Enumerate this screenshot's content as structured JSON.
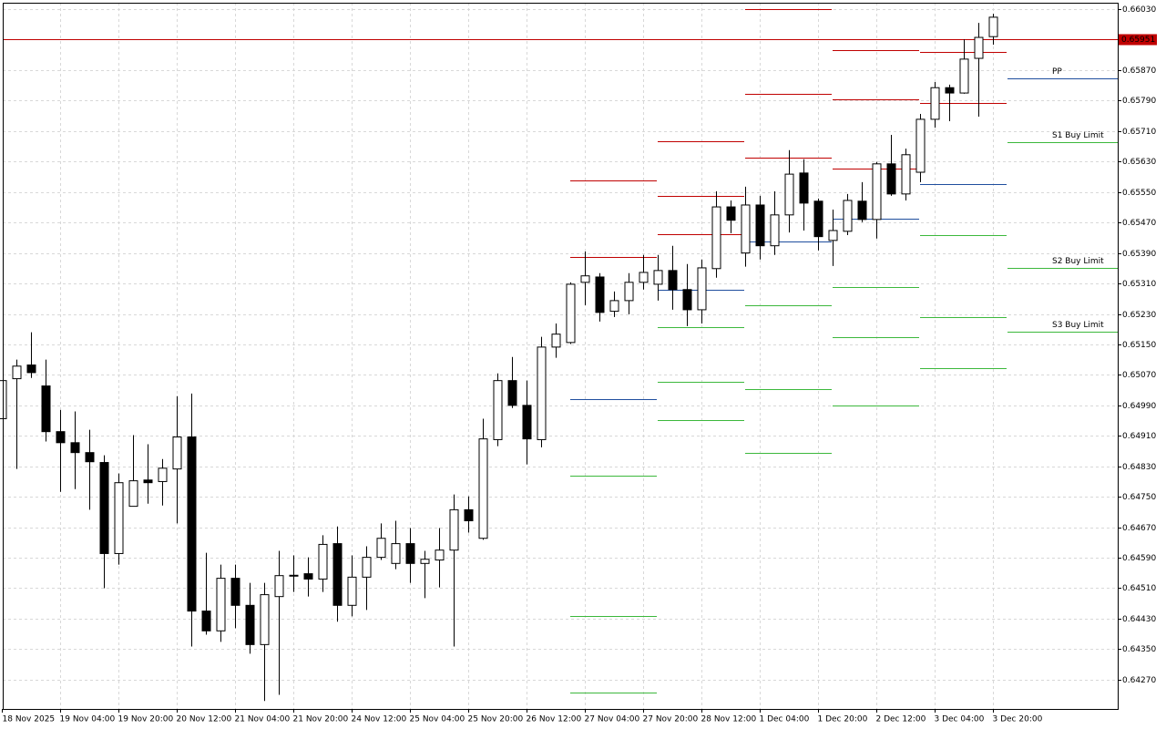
{
  "chart_data": {
    "type": "candlestick",
    "categories": [
      "18 Nov 2025",
      null,
      null,
      null,
      "19 Nov 04:00",
      null,
      null,
      null,
      "19 Nov 20:00",
      null,
      null,
      null,
      "20 Nov 12:00",
      null,
      null,
      null,
      "21 Nov 04:00",
      null,
      null,
      null,
      "21 Nov 20:00",
      null,
      null,
      null,
      "24 Nov 12:00",
      null,
      null,
      null,
      "25 Nov 04:00",
      null,
      null,
      null,
      "25 Nov 20:00",
      null,
      null,
      null,
      "26 Nov 12:00",
      null,
      null,
      null,
      "27 Nov 04:00",
      null,
      null,
      null,
      "27 Nov 20:00",
      null,
      null,
      null,
      "28 Nov 12:00",
      null,
      null,
      null,
      "1 Dec 04:00",
      null,
      null,
      null,
      "1 Dec 20:00",
      null,
      null,
      null,
      "2 Dec 12:00",
      null,
      null,
      null,
      "3 Dec 04:00",
      null,
      null,
      null,
      "3 Dec 20:00"
    ],
    "open": [
      0.64955,
      0.6506,
      0.65096,
      0.65041,
      0.64921,
      0.64892,
      0.64866,
      0.6484,
      0.64601,
      0.64725,
      0.64794,
      0.6479,
      0.64823,
      0.64907,
      0.6445,
      0.64398,
      0.64536,
      0.64465,
      0.64362,
      0.64488,
      0.64543,
      0.64548,
      0.64534,
      0.64627,
      0.64465,
      0.64539,
      0.64591,
      0.64575,
      0.64627,
      0.64575,
      0.64584,
      0.6461,
      0.64716,
      0.64641,
      0.649,
      0.65055,
      0.6499,
      0.649,
      0.65143,
      0.65155,
      0.65313,
      0.65327,
      0.65237,
      0.65265,
      0.65313,
      0.65308,
      0.65344,
      0.65294,
      0.65241,
      0.65349,
      0.65511,
      0.6539,
      0.65516,
      0.65409,
      0.6549,
      0.656,
      0.65526,
      0.65423,
      0.65447,
      0.65526,
      0.65478,
      0.65624,
      0.65545,
      0.65602,
      0.65741,
      0.65824,
      0.6581,
      0.65901,
      0.65958
    ],
    "high": [
      0.65055,
      0.6511,
      0.65182,
      0.6511,
      0.64978,
      0.64974,
      0.64926,
      0.64859,
      0.64811,
      0.64912,
      0.64888,
      0.64849,
      0.65014,
      0.65021,
      0.64603,
      0.64572,
      0.64572,
      0.64524,
      0.64524,
      0.64608,
      0.64596,
      0.64591,
      0.64649,
      0.64672,
      0.64596,
      0.6462,
      0.6468,
      0.64687,
      0.64668,
      0.64608,
      0.64668,
      0.64756,
      0.64751,
      0.64955,
      0.65074,
      0.65117,
      0.65055,
      0.6517,
      0.65205,
      0.65313,
      0.65394,
      0.65337,
      0.65289,
      0.65337,
      0.65385,
      0.65385,
      0.65409,
      0.65361,
      0.65373,
      0.65552,
      0.65528,
      0.65564,
      0.6554,
      0.65552,
      0.6566,
      0.65636,
      0.65533,
      0.65504,
      0.65545,
      0.65576,
      0.65629,
      0.657,
      0.65664,
      0.65755,
      0.65839,
      0.65832,
      0.65951,
      0.65994,
      0.66018
    ],
    "low": [
      0.64955,
      0.64823,
      0.65062,
      0.64895,
      0.64763,
      0.6477,
      0.64716,
      0.6451,
      0.64572,
      0.64725,
      0.64732,
      0.64727,
      0.6468,
      0.64357,
      0.64388,
      0.64369,
      0.64405,
      0.64338,
      0.64214,
      0.6423,
      0.645,
      0.64488,
      0.645,
      0.64422,
      0.64436,
      0.64453,
      0.64584,
      0.6456,
      0.64524,
      0.64484,
      0.64512,
      0.64357,
      0.64656,
      0.64637,
      0.64883,
      0.64983,
      0.64835,
      0.6488,
      0.65115,
      0.65151,
      0.65253,
      0.6521,
      0.65222,
      0.65229,
      0.65294,
      0.65265,
      0.65241,
      0.65198,
      0.65205,
      0.65325,
      0.65442,
      0.65354,
      0.65373,
      0.65385,
      0.65444,
      0.65449,
      0.65397,
      0.65356,
      0.65437,
      0.65471,
      0.65428,
      0.6554,
      0.65528,
      0.65576,
      0.65719,
      0.65736,
      0.65808,
      0.65748,
      0.65937
    ],
    "close": [
      0.65055,
      0.65093,
      0.65076,
      0.64921,
      0.64892,
      0.64866,
      0.64842,
      0.64601,
      0.64787,
      0.64792,
      0.64787,
      0.64825,
      0.64907,
      0.6445,
      0.64398,
      0.64536,
      0.64465,
      0.64362,
      0.64493,
      0.64543,
      0.64544,
      0.64534,
      0.64625,
      0.64465,
      0.64539,
      0.64591,
      0.64641,
      0.64627,
      0.64575,
      0.64586,
      0.6461,
      0.64716,
      0.64687,
      0.64902,
      0.65055,
      0.6499,
      0.64902,
      0.65143,
      0.65177,
      0.65308,
      0.6533,
      0.65234,
      0.65265,
      0.65313,
      0.65339,
      0.65344,
      0.65294,
      0.65241,
      0.65351,
      0.65511,
      0.65476,
      0.65516,
      0.65409,
      0.6549,
      0.65597,
      0.65521,
      0.65433,
      0.65449,
      0.65528,
      0.65478,
      0.65624,
      0.65545,
      0.65648,
      0.65741,
      0.65824,
      0.6581,
      0.65899,
      0.65956,
      0.66009
    ],
    "up_color": "#ffffff",
    "down_color": "#000000",
    "ylim": [
      0.64193,
      0.66047
    ],
    "yticks": [
      {
        "value": 0.6603,
        "label": "0.66030"
      },
      {
        "value": 0.6587,
        "label": "0.65870"
      },
      {
        "value": 0.6579,
        "label": "0.65790"
      },
      {
        "value": 0.6571,
        "label": "0.65710"
      },
      {
        "value": 0.6563,
        "label": "0.65630"
      },
      {
        "value": 0.6555,
        "label": "0.65550"
      },
      {
        "value": 0.6547,
        "label": "0.65470"
      },
      {
        "value": 0.6539,
        "label": "0.65390"
      },
      {
        "value": 0.6531,
        "label": "0.65310"
      },
      {
        "value": 0.6523,
        "label": "0.65230"
      },
      {
        "value": 0.6515,
        "label": "0.65150"
      },
      {
        "value": 0.6507,
        "label": "0.65070"
      },
      {
        "value": 0.6499,
        "label": "0.64990"
      },
      {
        "value": 0.6491,
        "label": "0.64910"
      },
      {
        "value": 0.6483,
        "label": "0.64830"
      },
      {
        "value": 0.6475,
        "label": "0.64750"
      },
      {
        "value": 0.6467,
        "label": "0.64670"
      },
      {
        "value": 0.6459,
        "label": "0.64590"
      },
      {
        "value": 0.6451,
        "label": "0.64510"
      },
      {
        "value": 0.6443,
        "label": "0.64430"
      },
      {
        "value": 0.6435,
        "label": "0.64350"
      },
      {
        "value": 0.6427,
        "label": "0.64270"
      }
    ],
    "grid": true,
    "current_price": {
      "value": 0.65951,
      "label": "0.65951",
      "color": "#c00000"
    },
    "resistance_color": "#c00000",
    "pivot_color": "#1f4e9e",
    "support_color": "#3cb83c",
    "pivots": [
      {
        "resistance": [
          0.6538,
          0.65581
        ],
        "pivot": 0.65007,
        "support": [
          0.64806,
          0.64436,
          0.64235
        ]
      },
      {
        "resistance": [
          0.6544,
          0.6554,
          0.65683
        ],
        "pivot": 0.65294,
        "support": [
          0.65196,
          0.65053,
          0.64952
        ]
      },
      {
        "resistance": [
          0.6564,
          0.65808,
          0.6603
        ],
        "pivot": 0.65421,
        "support": [
          0.65253,
          0.65033,
          0.64866
        ]
      },
      {
        "resistance": [
          0.65612,
          0.65793,
          0.65922
        ],
        "pivot": 0.6548,
        "support": [
          0.65301,
          0.6517,
          0.6499
        ]
      },
      {
        "resistance": [
          0.65784,
          0.65918
        ],
        "pivot": 0.65571,
        "support": [
          0.65437,
          0.65222,
          0.65088
        ]
      },
      {
        "resistance": [],
        "pivot": 0.65848,
        "support": [
          0.65681,
          0.65351,
          0.65184
        ],
        "pivot_label": "PP",
        "support_labels": [
          "S1 Buy Limit",
          "S2 Buy Limit",
          "S3 Buy Limit"
        ]
      }
    ]
  }
}
